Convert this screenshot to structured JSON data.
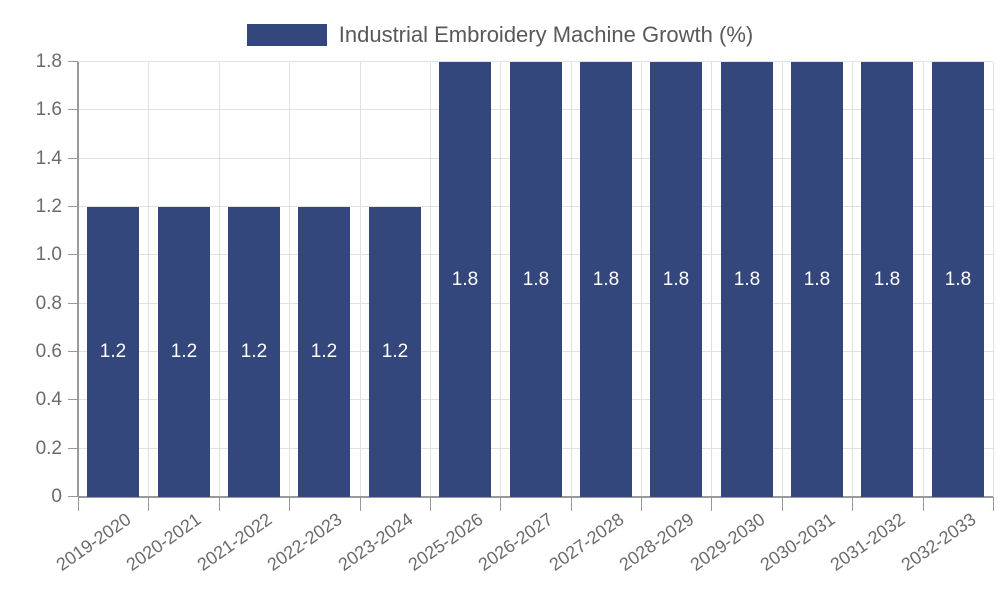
{
  "legend": {
    "label": "Industrial Embroidery Machine Growth (%)"
  },
  "chart_data": {
    "type": "bar",
    "title": "",
    "legend_entries": [
      "Industrial Embroidery Machine Growth (%)"
    ],
    "categories": [
      "2019-2020",
      "2020-2021",
      "2021-2022",
      "2022-2023",
      "2023-2024",
      "2025-2026",
      "2026-2027",
      "2027-2028",
      "2028-2029",
      "2029-2030",
      "2030-2031",
      "2031-2032",
      "2032-2033"
    ],
    "values": [
      1.2,
      1.2,
      1.2,
      1.2,
      1.2,
      1.8,
      1.8,
      1.8,
      1.8,
      1.8,
      1.8,
      1.8,
      1.8
    ],
    "bar_labels": [
      "1.2",
      "1.2",
      "1.2",
      "1.2",
      "1.2",
      "1.8",
      "1.8",
      "1.8",
      "1.8",
      "1.8",
      "1.8",
      "1.8",
      "1.8"
    ],
    "xlabel": "",
    "ylabel": "",
    "ylim": [
      0,
      1.8
    ],
    "ytick_values": [
      0,
      0.2,
      0.4,
      0.6,
      0.8,
      1.0,
      1.2,
      1.4,
      1.6,
      1.8
    ],
    "ytick_labels": [
      "0",
      "0.2",
      "0.4",
      "0.6",
      "0.8",
      "1.0",
      "1.2",
      "1.4",
      "1.6",
      "1.8"
    ],
    "grid": "on",
    "legend_position": "top-center",
    "xlabel_rotation_deg": -35,
    "colors": {
      "bar": "#33477C",
      "bar_value_text": "#ffffff",
      "gridline": "#e1e1e1",
      "axis": "#999999",
      "tick_text": "#6b6b6b",
      "legend_text": "#595959",
      "background": "#ffffff"
    }
  }
}
